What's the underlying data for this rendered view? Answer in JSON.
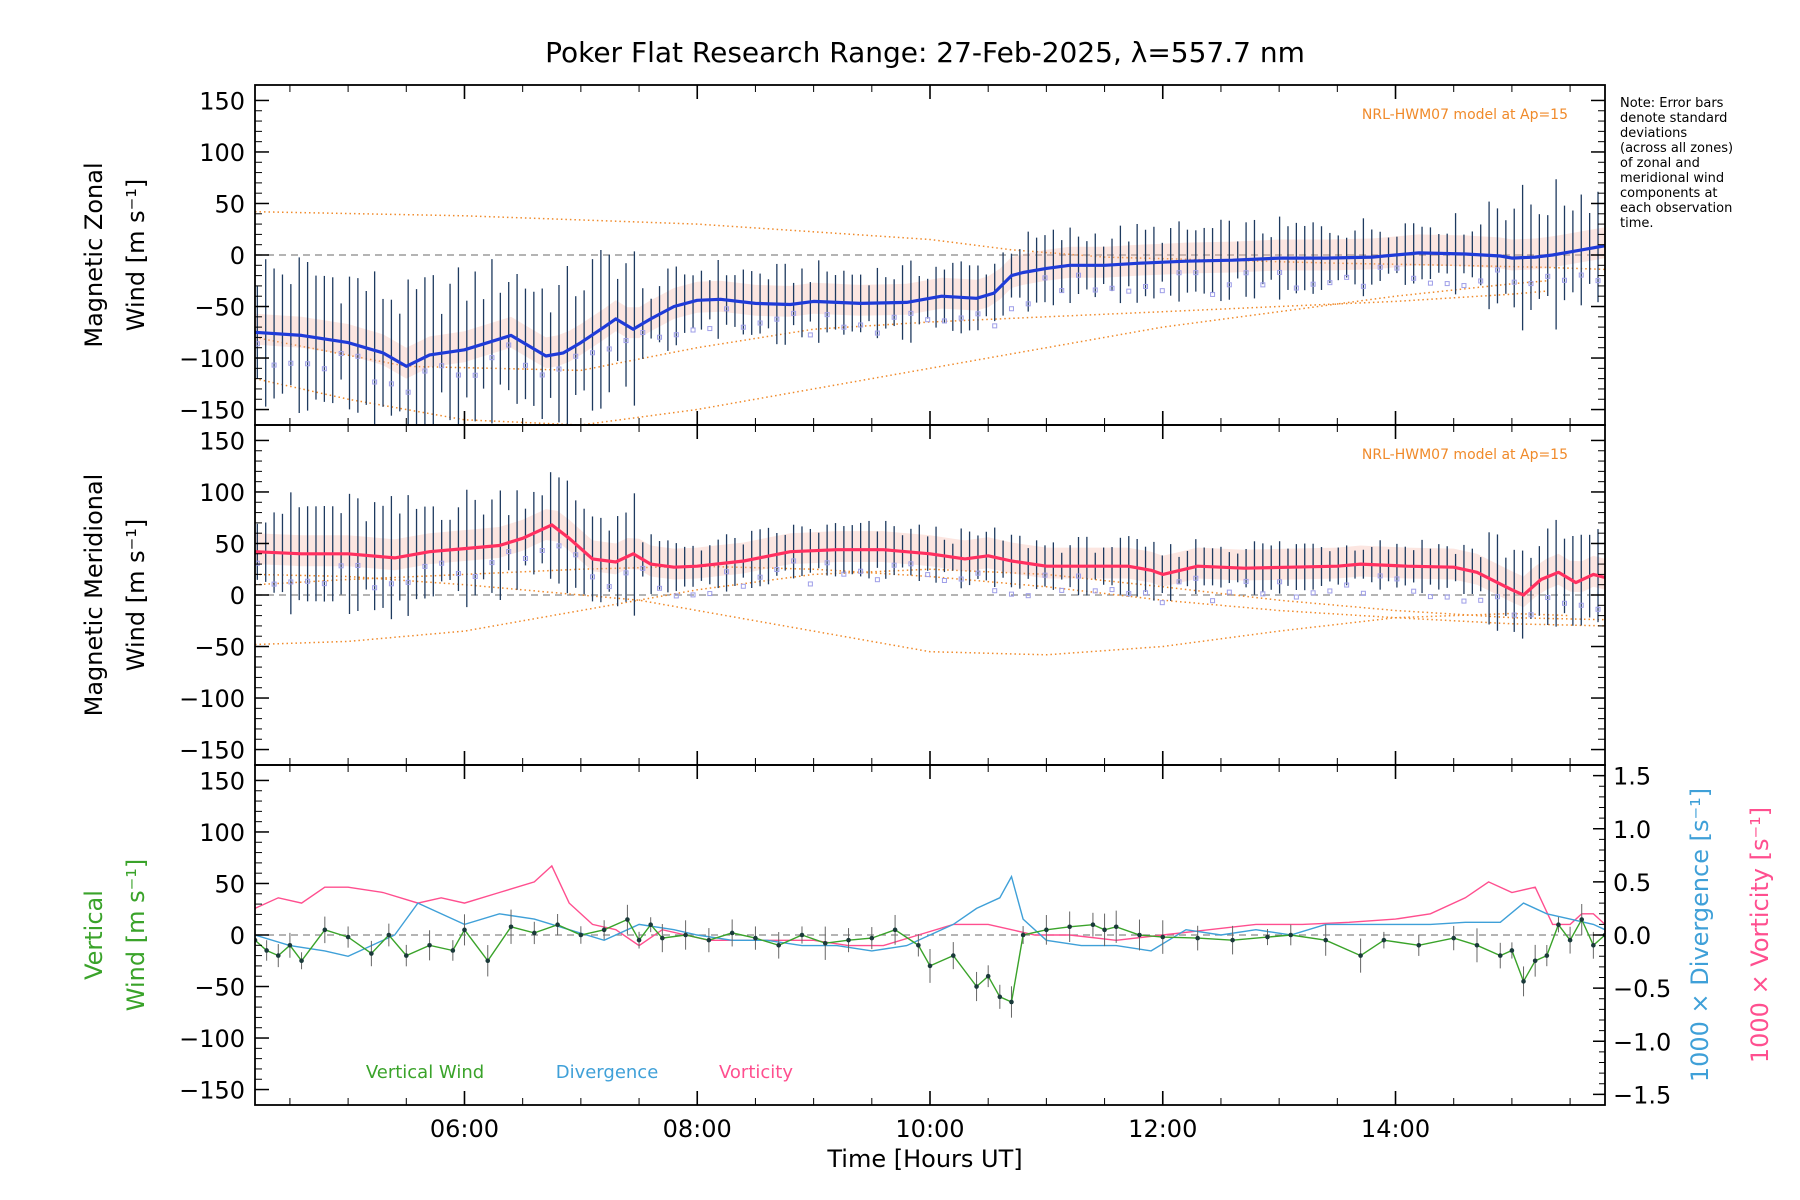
{
  "title": "Poker Flat Research Range: 27-Feb-2025, λ=557.7 nm",
  "note": [
    "Note: Error bars",
    "denote standard",
    "deviations",
    "(across all zones)",
    "of zonal and",
    "meridional wind",
    "components at",
    "each observation",
    "time."
  ],
  "xlabel": "Time [Hours UT]",
  "colors": {
    "zonal": "#1f3bd8",
    "meridional": "#ff3060",
    "vertical": "#3aa32a",
    "divergence": "#3fa0d8",
    "vorticity": "#ff4f8f",
    "model": "#f08a2a",
    "errorbar": "#1e3a5f",
    "zone_points": "#9e9ee8",
    "zone_shade": "#f6b8a8"
  },
  "chart_data": [
    {
      "type": "line",
      "panel": "zonal",
      "ylabel_lines": [
        "Magnetic Zonal",
        "Wind [m s⁻¹]"
      ],
      "model_label": "NRL-HWM07 model at Ap=15",
      "ylim": [
        -165,
        165
      ],
      "yticks": [
        -150,
        -100,
        -50,
        0,
        50,
        100,
        150
      ],
      "xlim": [
        4.2,
        15.8
      ],
      "xticks": [
        6,
        8,
        10,
        12,
        14
      ],
      "xtick_labels": [
        "06:00",
        "08:00",
        "10:00",
        "12:00",
        "14:00"
      ],
      "series": [
        {
          "key": "zonal",
          "x": [
            4.2,
            4.6,
            5.0,
            5.3,
            5.5,
            5.7,
            6.0,
            6.4,
            6.7,
            6.85,
            7.0,
            7.2,
            7.3,
            7.45,
            7.6,
            7.8,
            8.0,
            8.2,
            8.5,
            8.8,
            9.0,
            9.4,
            9.8,
            10.1,
            10.4,
            10.55,
            10.7,
            10.8,
            11.0,
            11.2,
            11.5,
            11.8,
            12.2,
            12.6,
            13.0,
            13.4,
            13.8,
            14.2,
            14.6,
            14.9,
            15.0,
            15.2,
            15.35,
            15.5,
            15.7,
            15.8
          ],
          "y": [
            -75,
            -78,
            -85,
            -95,
            -108,
            -97,
            -92,
            -78,
            -98,
            -95,
            -85,
            -70,
            -62,
            -72,
            -62,
            -50,
            -44,
            -43,
            -47,
            -48,
            -45,
            -47,
            -46,
            -40,
            -42,
            -37,
            -20,
            -17,
            -13,
            -10,
            -10,
            -8,
            -6,
            -5,
            -3,
            -3,
            -2,
            2,
            1,
            -1,
            -3,
            -2,
            0,
            3,
            7,
            9
          ],
          "err": 48
        }
      ],
      "models": [
        {
          "x": [
            4.2,
            6,
            8,
            10,
            10.7,
            11.5,
            12.5,
            13.5,
            14.5,
            15.3,
            15.8
          ],
          "y": [
            42,
            38,
            30,
            15,
            5,
            -2,
            -5,
            -8,
            -10,
            -12,
            -14
          ]
        },
        {
          "x": [
            4.2,
            5.5,
            7,
            8,
            9,
            10,
            11,
            12,
            13,
            14,
            15,
            15.3
          ],
          "y": [
            -80,
            -108,
            -112,
            -90,
            -72,
            -65,
            -60,
            -55,
            -50,
            -45,
            -38,
            -35
          ]
        },
        {
          "x": [
            4.2,
            5,
            6,
            7,
            8,
            9,
            10,
            11,
            12,
            13,
            14,
            15,
            15.3
          ],
          "y": [
            -120,
            -140,
            -160,
            -165,
            -150,
            -130,
            -110,
            -90,
            -70,
            -55,
            -40,
            -28,
            -25
          ]
        }
      ]
    },
    {
      "type": "line",
      "panel": "meridional",
      "ylabel_lines": [
        "Magnetic Meridional",
        "Wind [m s⁻¹]"
      ],
      "model_label": "NRL-HWM07 model at Ap=15",
      "ylim": [
        -165,
        165
      ],
      "yticks": [
        -150,
        -100,
        -50,
        0,
        50,
        100,
        150
      ],
      "xlim": [
        4.2,
        15.8
      ],
      "xticks": [
        6,
        8,
        10,
        12,
        14
      ],
      "xtick_labels": [
        "06:00",
        "08:00",
        "10:00",
        "12:00",
        "14:00"
      ],
      "series": [
        {
          "key": "meridional",
          "x": [
            4.2,
            4.6,
            5.0,
            5.4,
            5.7,
            6.0,
            6.3,
            6.5,
            6.75,
            6.9,
            7.1,
            7.3,
            7.45,
            7.6,
            7.8,
            8.0,
            8.4,
            8.8,
            9.2,
            9.6,
            10.0,
            10.3,
            10.5,
            10.7,
            11.0,
            11.4,
            11.7,
            11.9,
            12.0,
            12.3,
            12.7,
            13.1,
            13.5,
            13.7,
            14.1,
            14.5,
            14.7,
            15.0,
            15.1,
            15.25,
            15.4,
            15.55,
            15.7,
            15.8
          ],
          "y": [
            42,
            40,
            40,
            36,
            42,
            45,
            48,
            55,
            68,
            55,
            35,
            32,
            40,
            30,
            27,
            28,
            33,
            42,
            44,
            44,
            40,
            35,
            38,
            33,
            28,
            28,
            28,
            24,
            20,
            28,
            26,
            27,
            28,
            30,
            28,
            27,
            22,
            5,
            0,
            15,
            22,
            12,
            20,
            17
          ],
          "err": 35
        }
      ],
      "models": [
        {
          "x": [
            4.2,
            5,
            6,
            7,
            8,
            9,
            10,
            11,
            12,
            13,
            14,
            15,
            15.8
          ],
          "y": [
            -48,
            -45,
            -35,
            -15,
            5,
            20,
            25,
            20,
            8,
            -5,
            -15,
            -22,
            -24
          ]
        },
        {
          "x": [
            4.2,
            5,
            6,
            7,
            7.5,
            8,
            9,
            10,
            11,
            12,
            13,
            14,
            15,
            15.5
          ],
          "y": [
            20,
            18,
            10,
            0,
            -5,
            -15,
            -35,
            -55,
            -58,
            -50,
            -35,
            -22,
            -18,
            -20
          ]
        },
        {
          "x": [
            4.2,
            5,
            6,
            7,
            8,
            9,
            10,
            11,
            12,
            13,
            14,
            15,
            15.8
          ],
          "y": [
            10,
            15,
            20,
            25,
            28,
            25,
            18,
            8,
            -5,
            -15,
            -22,
            -28,
            -30
          ]
        }
      ]
    },
    {
      "type": "line",
      "panel": "vertical",
      "ylabel_lines": [
        "Vertical",
        "Wind [m s⁻¹]"
      ],
      "y2label_divergence": "1000 × Divergence [s⁻¹]",
      "y2label_vorticity": "1000 × Vorticity [s⁻¹]",
      "ylim": [
        -165,
        165
      ],
      "yticks": [
        -150,
        -100,
        -50,
        0,
        50,
        100,
        150
      ],
      "y2lim": [
        -1.6,
        1.6
      ],
      "y2ticks": [
        -1.5,
        -1.0,
        -0.5,
        0.0,
        0.5,
        1.0,
        1.5
      ],
      "y2tick_labels": [
        "−1.5",
        "−1.0",
        "−0.5",
        "0.0",
        "0.5",
        "1.0",
        "1.5"
      ],
      "xlim": [
        4.2,
        15.8
      ],
      "xticks": [
        6,
        8,
        10,
        12,
        14
      ],
      "xtick_labels": [
        "06:00",
        "08:00",
        "10:00",
        "12:00",
        "14:00"
      ],
      "legend": [
        "Vertical Wind",
        "Divergence",
        "Vorticity"
      ],
      "series": [
        {
          "key": "vertical",
          "name": "Vertical Wind",
          "x": [
            4.2,
            4.3,
            4.4,
            4.5,
            4.6,
            4.8,
            5.0,
            5.2,
            5.35,
            5.5,
            5.7,
            5.9,
            6.0,
            6.2,
            6.4,
            6.6,
            6.8,
            7.0,
            7.2,
            7.4,
            7.5,
            7.6,
            7.7,
            7.9,
            8.1,
            8.3,
            8.5,
            8.7,
            8.9,
            9.1,
            9.3,
            9.5,
            9.7,
            9.9,
            10.0,
            10.2,
            10.4,
            10.5,
            10.6,
            10.7,
            10.8,
            11.0,
            11.2,
            11.4,
            11.5,
            11.6,
            11.8,
            12.0,
            12.3,
            12.6,
            12.9,
            13.1,
            13.4,
            13.7,
            13.9,
            14.2,
            14.5,
            14.7,
            14.9,
            15.0,
            15.1,
            15.2,
            15.3,
            15.4,
            15.5,
            15.6,
            15.7,
            15.8
          ],
          "y": [
            -5,
            -15,
            -20,
            -10,
            -25,
            5,
            -2,
            -18,
            0,
            -20,
            -10,
            -15,
            5,
            -25,
            8,
            2,
            10,
            0,
            5,
            15,
            -5,
            10,
            -3,
            0,
            -5,
            2,
            -3,
            -10,
            0,
            -8,
            -5,
            -3,
            5,
            -10,
            -30,
            -20,
            -50,
            -40,
            -60,
            -65,
            0,
            5,
            8,
            10,
            5,
            8,
            0,
            -2,
            -3,
            -5,
            -2,
            0,
            -5,
            -20,
            -5,
            -10,
            -3,
            -10,
            -20,
            -15,
            -45,
            -25,
            -20,
            10,
            -5,
            15,
            -10,
            0
          ],
          "err": 12
        },
        {
          "key": "divergence",
          "name": "Divergence",
          "axis": "y2",
          "x": [
            4.2,
            4.5,
            4.8,
            5.0,
            5.2,
            5.4,
            5.6,
            5.8,
            6.0,
            6.3,
            6.6,
            6.9,
            7.2,
            7.5,
            7.8,
            8.0,
            8.3,
            8.6,
            8.9,
            9.2,
            9.5,
            9.8,
            10.0,
            10.2,
            10.4,
            10.6,
            10.7,
            10.8,
            11.0,
            11.3,
            11.6,
            11.9,
            12.2,
            12.5,
            12.8,
            13.1,
            13.4,
            13.7,
            14.0,
            14.3,
            14.6,
            14.9,
            15.1,
            15.3,
            15.5,
            15.7,
            15.8
          ],
          "y": [
            0.0,
            -0.1,
            -0.15,
            -0.2,
            -0.1,
            0.0,
            0.3,
            0.2,
            0.1,
            0.2,
            0.15,
            0.05,
            -0.05,
            0.1,
            0.05,
            0.0,
            -0.05,
            -0.05,
            -0.1,
            -0.1,
            -0.15,
            -0.1,
            0.0,
            0.1,
            0.25,
            0.35,
            0.55,
            0.15,
            -0.05,
            -0.1,
            -0.1,
            -0.15,
            0.05,
            0.0,
            0.05,
            0.0,
            0.1,
            0.1,
            0.1,
            0.1,
            0.12,
            0.12,
            0.3,
            0.2,
            0.15,
            0.1,
            0.05
          ]
        },
        {
          "key": "vorticity",
          "name": "Vorticity",
          "axis": "y2",
          "x": [
            4.2,
            4.4,
            4.6,
            4.8,
            5.0,
            5.3,
            5.6,
            5.8,
            6.0,
            6.3,
            6.6,
            6.75,
            6.9,
            7.1,
            7.3,
            7.5,
            7.7,
            7.9,
            8.1,
            8.4,
            8.7,
            9.0,
            9.3,
            9.6,
            9.9,
            10.2,
            10.5,
            10.7,
            10.9,
            11.2,
            11.6,
            12.0,
            12.4,
            12.8,
            13.2,
            13.6,
            14.0,
            14.3,
            14.6,
            14.8,
            15.0,
            15.2,
            15.35,
            15.5,
            15.6,
            15.7,
            15.8
          ],
          "y": [
            0.25,
            0.35,
            0.3,
            0.45,
            0.45,
            0.4,
            0.3,
            0.35,
            0.3,
            0.4,
            0.5,
            0.65,
            0.3,
            0.1,
            0.05,
            -0.1,
            0.05,
            0.0,
            -0.05,
            -0.05,
            -0.05,
            -0.05,
            -0.1,
            -0.1,
            0.0,
            0.1,
            0.1,
            0.05,
            0.0,
            0.0,
            -0.05,
            0.0,
            0.05,
            0.1,
            0.1,
            0.12,
            0.15,
            0.2,
            0.35,
            0.5,
            0.4,
            0.45,
            0.1,
            0.1,
            0.2,
            0.2,
            0.1
          ]
        }
      ]
    }
  ]
}
